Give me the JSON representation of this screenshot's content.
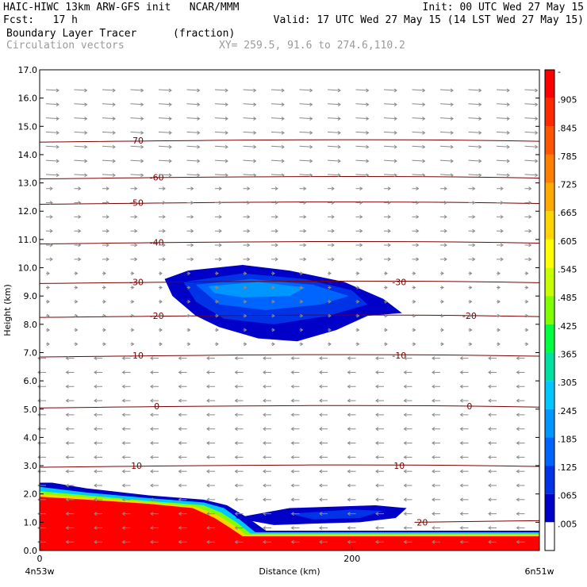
{
  "header": {
    "line1_left": "HAIC-HIWC 13km ARW-GFS init   NCAR/MMM",
    "line1_right": "Init: 00 UTC Wed 27 May 15",
    "line2_left": "Fcst:   17 h",
    "line2_right": "Valid: 17 UTC Wed 27 May 15 (14 LST Wed 27 May 15)",
    "line3_left": "Boundary Layer Tracer",
    "line3_mid": "(fraction)",
    "line4_left": "Circulation vectors",
    "line4_mid": "XY= 259.5, 91.6 to 274.6,110.2"
  },
  "chart_data": {
    "type": "heatmap",
    "xlabel": "Distance (km)",
    "ylabel": "Height (km)",
    "xlim": [
      0,
      320
    ],
    "ylim": [
      0.0,
      17.0
    ],
    "x_ticks": [
      "0",
      "200"
    ],
    "x_end_labels": [
      "4n53w",
      "6n51w"
    ],
    "y_ticks": [
      "0.0",
      "1.0",
      "2.0",
      "3.0",
      "4.0",
      "5.0",
      "6.0",
      "7.0",
      "8.0",
      "9.0",
      "10.0",
      "11.0",
      "12.0",
      "13.0",
      "14.0",
      "15.0",
      "16.0",
      "17.0"
    ],
    "colorbar_labels": [
      "-",
      ".905",
      ".845",
      ".785",
      ".725",
      ".665",
      ".605",
      ".545",
      ".485",
      ".425",
      ".365",
      ".305",
      ".245",
      ".185",
      ".125",
      ".065",
      ".005"
    ],
    "colorbar_colors": [
      "#ff0000",
      "#ff2a00",
      "#ff5500",
      "#ff8000",
      "#ffaa00",
      "#ffd400",
      "#ffff00",
      "#c8ff00",
      "#80ff00",
      "#00ff40",
      "#00e0a0",
      "#00c8ff",
      "#0096ff",
      "#0064ff",
      "#0032e6",
      "#0000c8",
      "#ffffff"
    ],
    "temperature_contours": [
      {
        "label": "10",
        "y": 3.0
      },
      {
        "label": "0",
        "y": 5.1
      },
      {
        "label": "-10",
        "y": 6.9
      },
      {
        "label": "-20",
        "y": 8.3
      },
      {
        "label": "-30",
        "y": 9.5
      },
      {
        "label": "-40",
        "y": 10.9
      },
      {
        "label": "-50",
        "y": 12.3
      },
      {
        "label": "-60",
        "y": 13.2
      },
      {
        "label": "-70",
        "y": 14.5
      },
      {
        "label": "20",
        "y": 1.0
      }
    ]
  }
}
